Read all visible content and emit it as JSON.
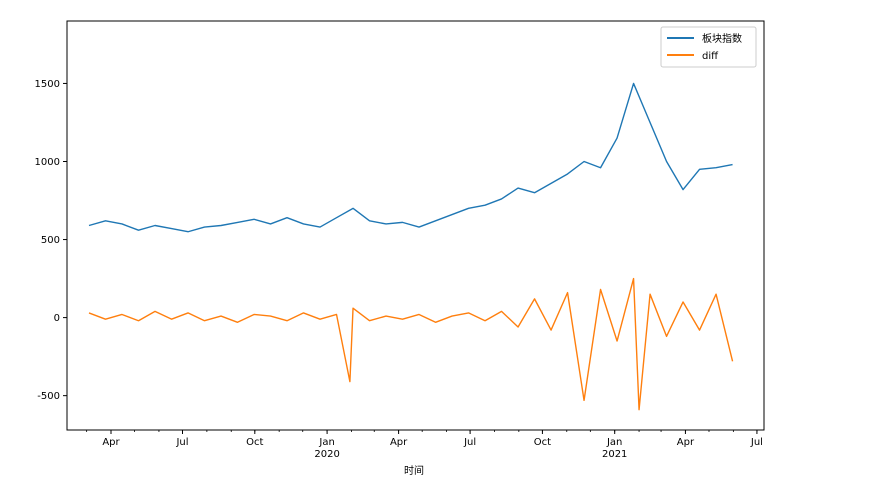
{
  "chart_data": {
    "type": "line",
    "xlabel": "时间",
    "ylabel": "",
    "ylim": [
      -720,
      1900
    ],
    "xlim": [
      "2019-02-04",
      "2021-07-10"
    ],
    "grid": false,
    "legend_position": "top-right",
    "y_ticks": [
      -500,
      0,
      500,
      1000,
      1500
    ],
    "x_ticks": [
      {
        "date": "2019-04-01",
        "label": "Apr"
      },
      {
        "date": "2019-07-01",
        "label": "Jul"
      },
      {
        "date": "2019-10-01",
        "label": "Oct"
      },
      {
        "date": "2020-01-01",
        "label": "Jan",
        "year": "2020"
      },
      {
        "date": "2020-04-01",
        "label": "Apr"
      },
      {
        "date": "2020-07-01",
        "label": "Jul"
      },
      {
        "date": "2020-10-01",
        "label": "Oct"
      },
      {
        "date": "2021-01-01",
        "label": "Jan",
        "year": "2021"
      },
      {
        "date": "2021-04-01",
        "label": "Apr"
      },
      {
        "date": "2021-07-01",
        "label": "Jul"
      }
    ],
    "series": [
      {
        "name": "板块指数",
        "color": "#1f77b4",
        "x": [
          "2019-03-04",
          "2019-03-25",
          "2019-04-15",
          "2019-05-06",
          "2019-05-27",
          "2019-06-17",
          "2019-07-08",
          "2019-07-29",
          "2019-08-19",
          "2019-09-09",
          "2019-09-30",
          "2019-10-21",
          "2019-11-11",
          "2019-12-02",
          "2019-12-23",
          "2020-01-13",
          "2020-02-03",
          "2020-02-24",
          "2020-03-16",
          "2020-04-06",
          "2020-04-27",
          "2020-05-18",
          "2020-06-08",
          "2020-06-29",
          "2020-07-20",
          "2020-08-10",
          "2020-08-31",
          "2020-09-21",
          "2020-10-12",
          "2020-11-02",
          "2020-11-23",
          "2020-12-14",
          "2021-01-04",
          "2021-01-25",
          "2021-02-15",
          "2021-03-08",
          "2021-03-29",
          "2021-04-19",
          "2021-05-10",
          "2021-05-31"
        ],
        "values": [
          590,
          620,
          600,
          560,
          590,
          570,
          550,
          580,
          590,
          610,
          630,
          600,
          640,
          600,
          580,
          640,
          700,
          620,
          600,
          610,
          580,
          620,
          660,
          700,
          720,
          760,
          830,
          800,
          860,
          920,
          1000,
          960,
          1150,
          1500,
          1250,
          1000,
          820,
          950,
          960,
          980
        ]
      },
      {
        "name": "diff",
        "color": "#ff7f0e",
        "x": [
          "2019-03-04",
          "2019-03-25",
          "2019-04-15",
          "2019-05-06",
          "2019-05-27",
          "2019-06-17",
          "2019-07-08",
          "2019-07-29",
          "2019-08-19",
          "2019-09-09",
          "2019-09-30",
          "2019-10-21",
          "2019-11-11",
          "2019-12-02",
          "2019-12-23",
          "2020-01-13",
          "2020-01-30",
          "2020-02-03",
          "2020-02-24",
          "2020-03-16",
          "2020-04-06",
          "2020-04-27",
          "2020-05-18",
          "2020-06-08",
          "2020-06-29",
          "2020-07-20",
          "2020-08-10",
          "2020-08-31",
          "2020-09-21",
          "2020-10-12",
          "2020-11-02",
          "2020-11-23",
          "2020-12-14",
          "2021-01-04",
          "2021-01-25",
          "2021-02-01",
          "2021-02-15",
          "2021-03-08",
          "2021-03-29",
          "2021-04-19",
          "2021-05-10",
          "2021-05-31"
        ],
        "values": [
          30,
          -10,
          20,
          -20,
          40,
          -10,
          30,
          -20,
          10,
          -30,
          20,
          10,
          -20,
          30,
          -10,
          20,
          -410,
          60,
          -20,
          10,
          -10,
          20,
          -30,
          10,
          30,
          -20,
          40,
          -60,
          120,
          -80,
          160,
          -530,
          180,
          -150,
          250,
          -590,
          150,
          -120,
          100,
          -80,
          150,
          -280
        ]
      }
    ]
  }
}
